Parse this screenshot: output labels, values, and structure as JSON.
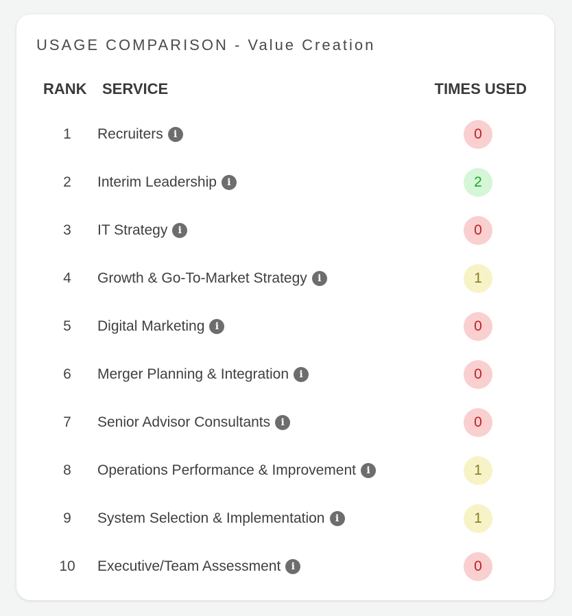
{
  "card": {
    "title": "USAGE COMPARISON - Value Creation"
  },
  "columns": {
    "rank": "RANK",
    "service": "SERVICE",
    "times_used": "TIMES USED"
  },
  "status_colors": {
    "zero": "#f9cfd0",
    "one": "#f8f3c6",
    "two": "#d5f6d7"
  },
  "icons": {
    "info": "info-icon"
  },
  "rows": [
    {
      "rank": "1",
      "service": "Recruiters",
      "times_used": "0",
      "level": "red"
    },
    {
      "rank": "2",
      "service": "Interim Leadership",
      "times_used": "2",
      "level": "green"
    },
    {
      "rank": "3",
      "service": "IT Strategy",
      "times_used": "0",
      "level": "red"
    },
    {
      "rank": "4",
      "service": "Growth & Go-To-Market Strategy",
      "times_used": "1",
      "level": "yellow"
    },
    {
      "rank": "5",
      "service": "Digital Marketing",
      "times_used": "0",
      "level": "red"
    },
    {
      "rank": "6",
      "service": "Merger Planning & Integration",
      "times_used": "0",
      "level": "red"
    },
    {
      "rank": "7",
      "service": "Senior Advisor Consultants",
      "times_used": "0",
      "level": "red"
    },
    {
      "rank": "8",
      "service": "Operations Performance & Improvement",
      "times_used": "1",
      "level": "yellow"
    },
    {
      "rank": "9",
      "service": "System Selection & Implementation",
      "times_used": "1",
      "level": "yellow"
    },
    {
      "rank": "10",
      "service": "Executive/Team Assessment",
      "times_used": "0",
      "level": "red"
    }
  ]
}
